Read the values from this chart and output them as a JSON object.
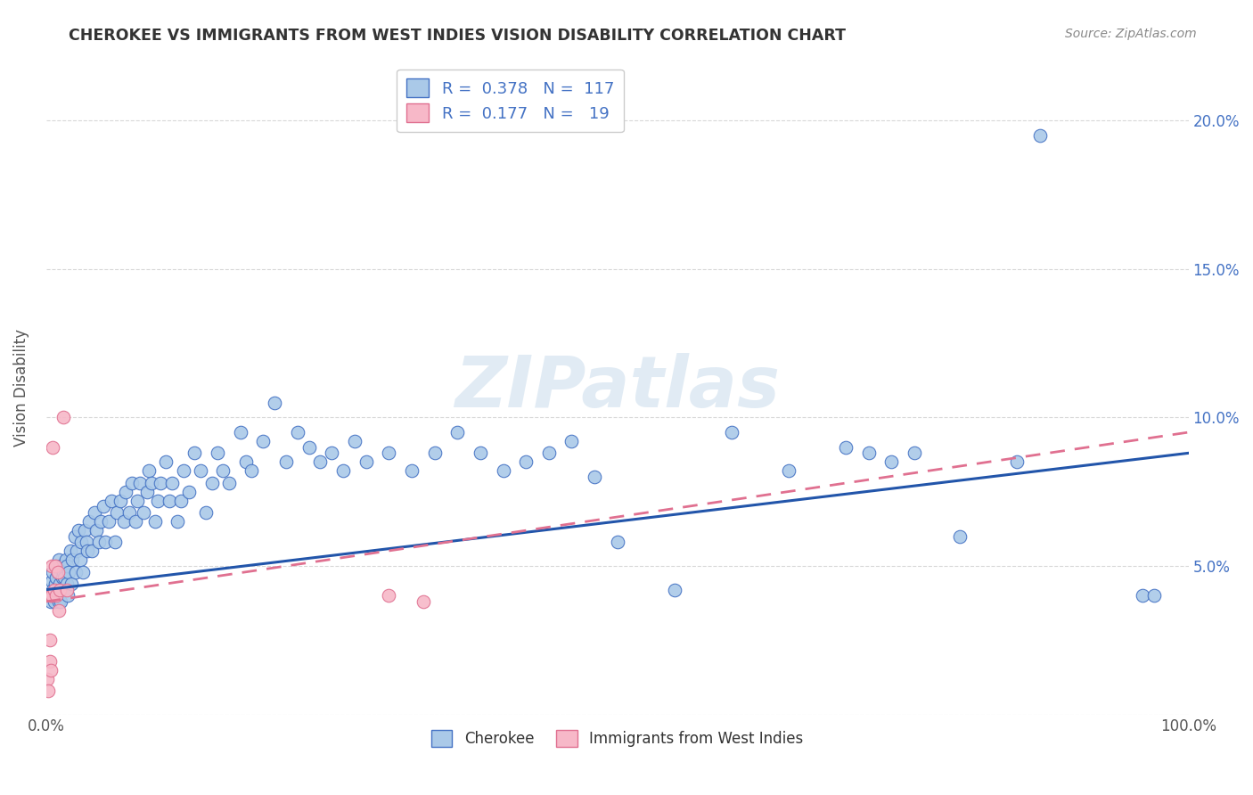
{
  "title": "CHEROKEE VS IMMIGRANTS FROM WEST INDIES VISION DISABILITY CORRELATION CHART",
  "source": "Source: ZipAtlas.com",
  "ylabel": "Vision Disability",
  "xlim": [
    0,
    1.0
  ],
  "ylim": [
    0,
    0.22
  ],
  "xtick_vals": [
    0.0,
    0.2,
    0.4,
    0.6,
    0.8,
    1.0
  ],
  "xticklabels": [
    "0.0%",
    "",
    "",
    "",
    "",
    "100.0%"
  ],
  "ytick_vals": [
    0.0,
    0.05,
    0.1,
    0.15,
    0.2
  ],
  "yticklabels_left": [
    "",
    "",
    "",
    "",
    ""
  ],
  "yticklabels_right": [
    "",
    "5.0%",
    "10.0%",
    "15.0%",
    "20.0%"
  ],
  "cherokee_R": 0.378,
  "cherokee_N": 117,
  "westindies_R": 0.177,
  "westindies_N": 19,
  "cherokee_color": "#aac9e8",
  "cherokee_edge_color": "#4472c4",
  "cherokee_line_color": "#2255aa",
  "westindies_color": "#f7b8c8",
  "westindies_edge_color": "#e07090",
  "westindies_line_color": "#e07090",
  "background_color": "#ffffff",
  "grid_color": "#d8d8d8",
  "watermark": "ZIPatlas",
  "title_color": "#333333",
  "source_color": "#888888",
  "ylabel_color": "#555555",
  "tick_color_right": "#4472c4",
  "tick_color_bottom": "#555555",
  "legend_label_color": "#333333",
  "legend_value_color": "#4472c4",
  "cherokee_x": [
    0.003,
    0.004,
    0.005,
    0.006,
    0.006,
    0.007,
    0.007,
    0.008,
    0.008,
    0.009,
    0.009,
    0.01,
    0.01,
    0.011,
    0.011,
    0.012,
    0.013,
    0.013,
    0.014,
    0.015,
    0.015,
    0.016,
    0.017,
    0.018,
    0.018,
    0.019,
    0.02,
    0.021,
    0.022,
    0.023,
    0.025,
    0.026,
    0.027,
    0.028,
    0.03,
    0.031,
    0.032,
    0.034,
    0.035,
    0.036,
    0.038,
    0.04,
    0.042,
    0.044,
    0.046,
    0.048,
    0.05,
    0.052,
    0.055,
    0.057,
    0.06,
    0.062,
    0.065,
    0.068,
    0.07,
    0.073,
    0.075,
    0.078,
    0.08,
    0.082,
    0.085,
    0.088,
    0.09,
    0.092,
    0.095,
    0.098,
    0.1,
    0.105,
    0.108,
    0.11,
    0.115,
    0.118,
    0.12,
    0.125,
    0.13,
    0.135,
    0.14,
    0.145,
    0.15,
    0.155,
    0.16,
    0.17,
    0.175,
    0.18,
    0.19,
    0.2,
    0.21,
    0.22,
    0.23,
    0.24,
    0.25,
    0.26,
    0.27,
    0.28,
    0.3,
    0.32,
    0.34,
    0.36,
    0.38,
    0.4,
    0.42,
    0.44,
    0.46,
    0.48,
    0.5,
    0.55,
    0.6,
    0.65,
    0.7,
    0.72,
    0.74,
    0.76,
    0.8,
    0.85,
    0.87,
    0.96,
    0.97
  ],
  "cherokee_y": [
    0.04,
    0.038,
    0.045,
    0.042,
    0.048,
    0.038,
    0.042,
    0.044,
    0.05,
    0.04,
    0.046,
    0.042,
    0.048,
    0.038,
    0.052,
    0.044,
    0.05,
    0.038,
    0.046,
    0.042,
    0.048,
    0.046,
    0.052,
    0.044,
    0.05,
    0.04,
    0.048,
    0.055,
    0.044,
    0.052,
    0.06,
    0.048,
    0.055,
    0.062,
    0.052,
    0.058,
    0.048,
    0.062,
    0.058,
    0.055,
    0.065,
    0.055,
    0.068,
    0.062,
    0.058,
    0.065,
    0.07,
    0.058,
    0.065,
    0.072,
    0.058,
    0.068,
    0.072,
    0.065,
    0.075,
    0.068,
    0.078,
    0.065,
    0.072,
    0.078,
    0.068,
    0.075,
    0.082,
    0.078,
    0.065,
    0.072,
    0.078,
    0.085,
    0.072,
    0.078,
    0.065,
    0.072,
    0.082,
    0.075,
    0.088,
    0.082,
    0.068,
    0.078,
    0.088,
    0.082,
    0.078,
    0.095,
    0.085,
    0.082,
    0.092,
    0.105,
    0.085,
    0.095,
    0.09,
    0.085,
    0.088,
    0.082,
    0.092,
    0.085,
    0.088,
    0.082,
    0.088,
    0.095,
    0.088,
    0.082,
    0.085,
    0.088,
    0.092,
    0.08,
    0.058,
    0.042,
    0.095,
    0.082,
    0.09,
    0.088,
    0.085,
    0.088,
    0.06,
    0.085,
    0.195,
    0.04,
    0.04
  ],
  "westindies_x": [
    0.001,
    0.002,
    0.003,
    0.003,
    0.004,
    0.004,
    0.005,
    0.005,
    0.006,
    0.007,
    0.008,
    0.009,
    0.01,
    0.011,
    0.012,
    0.015,
    0.018,
    0.3,
    0.33
  ],
  "westindies_y": [
    0.012,
    0.008,
    0.018,
    0.025,
    0.015,
    0.04,
    0.04,
    0.05,
    0.09,
    0.042,
    0.05,
    0.04,
    0.048,
    0.035,
    0.042,
    0.1,
    0.042,
    0.04,
    0.038
  ]
}
